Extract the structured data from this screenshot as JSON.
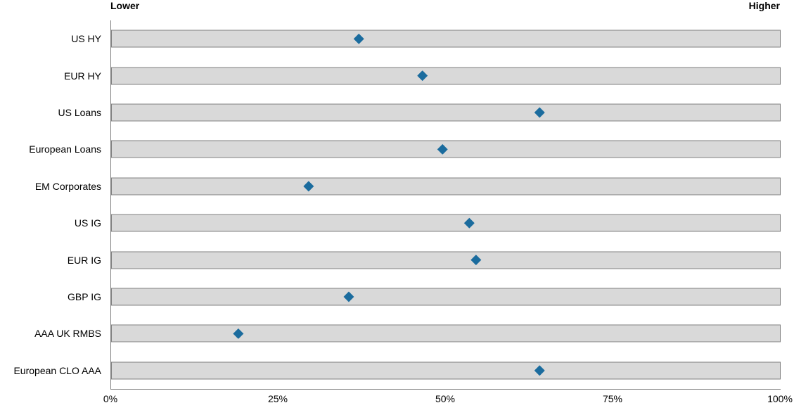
{
  "chart_data": {
    "type": "scatter",
    "subtype": "horizontal-dot-plot",
    "title": "",
    "header_left": "Lower",
    "header_right": "Higher",
    "categories": [
      "US HY",
      "EUR HY",
      "US Loans",
      "European Loans",
      "EM Corporates",
      "US IG",
      "EUR IG",
      "GBP IG",
      "AAA UK RMBS",
      "European CLO AAA"
    ],
    "values_pct": [
      37,
      46.5,
      64,
      49.5,
      29.5,
      53.5,
      54.5,
      35.5,
      19,
      64
    ],
    "x_ticks": [
      "0%",
      "25%",
      "50%",
      "75%",
      "100%"
    ],
    "x_tick_values": [
      0,
      25,
      50,
      75,
      100
    ],
    "xlim": [
      0,
      100
    ],
    "ylabel": "",
    "xlabel": "",
    "grid": false,
    "legend": false,
    "marker_shape": "diamond",
    "marker_color": "#1B6C9E",
    "band_fill_color": "#D9D9D9",
    "band_border_color": "#808080",
    "axis_line_color": "#808080",
    "text_color": "#000000"
  }
}
